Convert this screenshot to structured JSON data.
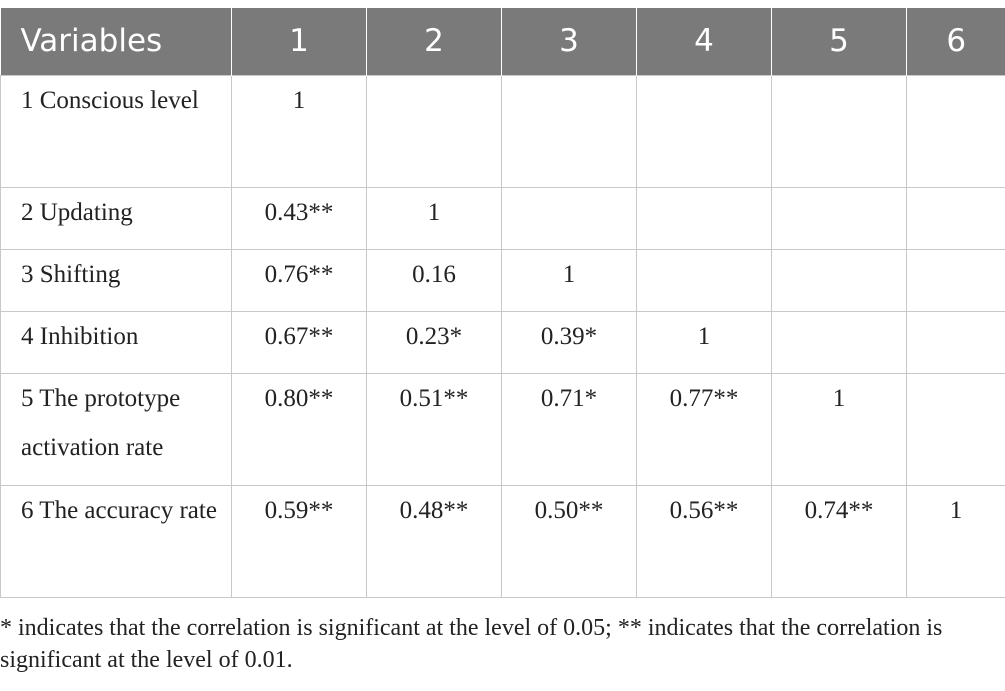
{
  "table": {
    "headers": [
      "Variables",
      "1",
      "2",
      "3",
      "4",
      "5",
      "6"
    ],
    "rows": [
      {
        "label": "1 Conscious level",
        "cells": [
          "1",
          "",
          "",
          "",
          "",
          ""
        ]
      },
      {
        "label": "2 Updating",
        "cells": [
          "0.43**",
          "1",
          "",
          "",
          "",
          ""
        ]
      },
      {
        "label": "3 Shifting",
        "cells": [
          "0.76**",
          "0.16",
          "1",
          "",
          "",
          ""
        ]
      },
      {
        "label": "4 Inhibition",
        "cells": [
          "0.67**",
          "0.23*",
          "0.39*",
          "1",
          "",
          ""
        ]
      },
      {
        "label": "5 The prototype activation rate",
        "cells": [
          "0.80**",
          "0.51**",
          "0.71*",
          "0.77**",
          "1",
          ""
        ]
      },
      {
        "label": "6 The accuracy rate",
        "cells": [
          "0.59**",
          "0.48**",
          "0.50**",
          "0.56**",
          "0.74**",
          "1"
        ]
      }
    ]
  },
  "footnote": "* indicates that the correlation is significant at the level of 0.05; ** indicates that the correlation is significant at the level of 0.01.",
  "colors": {
    "header_bg": "#7a7a7a",
    "header_text": "#ffffff",
    "grid": "#c8c8c8",
    "text": "#222222"
  }
}
